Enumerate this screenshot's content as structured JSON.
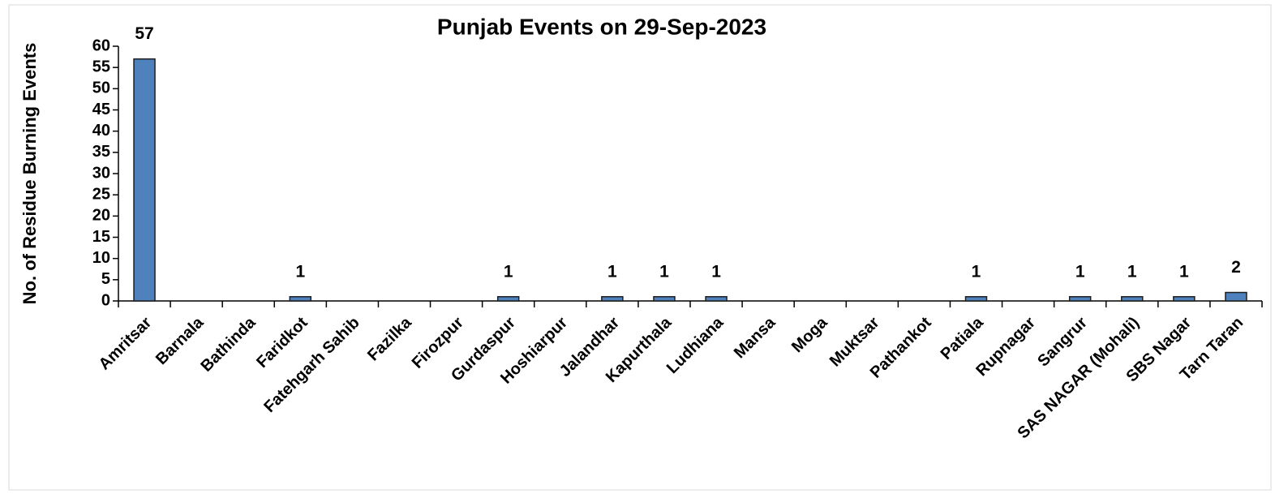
{
  "chart_data": {
    "type": "bar",
    "title": "Punjab Events on 29-Sep-2023",
    "y_label": "No. of Residue Burning Events",
    "categories": [
      "Amritsar",
      "Barnala",
      "Bathinda",
      "Faridkot",
      "Fatehgarh Sahib",
      "Fazilka",
      "Firozpur",
      "Gurdaspur",
      "Hoshiarpur",
      "Jalandhar",
      "Kapurthala",
      "Ludhiana",
      "Mansa",
      "Moga",
      "Muktsar",
      "Pathankot",
      "Patiala",
      "Rupnagar",
      "Sangrur",
      "SAS NAGAR (Mohali)",
      "SBS Nagar",
      "Tarn Taran"
    ],
    "values": [
      57,
      0,
      0,
      1,
      0,
      0,
      0,
      1,
      0,
      1,
      1,
      1,
      0,
      0,
      0,
      0,
      1,
      0,
      1,
      1,
      1,
      2
    ],
    "color": "#4f81bd",
    "label_color": "#0070c0",
    "ylim": [
      0,
      60
    ],
    "yticks": [
      0,
      5,
      10,
      15,
      20,
      25,
      30,
      35,
      40,
      45,
      50,
      55,
      60
    ],
    "grid": false
  }
}
